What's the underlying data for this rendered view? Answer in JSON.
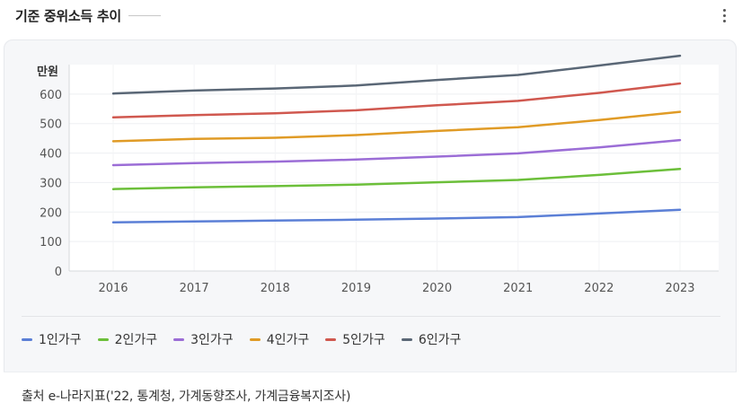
{
  "header": {
    "title": "기준 중위소득 추이"
  },
  "source_text": "출처 e-나라지표('22, 통계청, 가계동향조사, 가계금융복지조사)",
  "chart_data": {
    "type": "line",
    "title": "",
    "xlabel": "",
    "ylabel": "만원",
    "x": [
      "2016",
      "2017",
      "2018",
      "2019",
      "2020",
      "2021",
      "2022",
      "2023"
    ],
    "yticks": [
      0,
      100,
      200,
      300,
      400,
      500,
      600
    ],
    "ylim": [
      0,
      700
    ],
    "grid": true,
    "legend_position": "bottom",
    "series": [
      {
        "name": "1인가구",
        "color": "#5b7fd6",
        "values": [
          165,
          168,
          171,
          174,
          178,
          183,
          195,
          208
        ]
      },
      {
        "name": "2인가구",
        "color": "#6cbf3a",
        "values": [
          278,
          284,
          288,
          293,
          301,
          309,
          326,
          346
        ]
      },
      {
        "name": "3인가구",
        "color": "#9b6dd6",
        "values": [
          359,
          366,
          371,
          378,
          388,
          399,
          419,
          444
        ]
      },
      {
        "name": "4인가구",
        "color": "#e09b26",
        "values": [
          440,
          448,
          452,
          461,
          475,
          488,
          512,
          540
        ]
      },
      {
        "name": "5인가구",
        "color": "#d0584f",
        "values": [
          521,
          529,
          535,
          545,
          562,
          577,
          604,
          636
        ]
      },
      {
        "name": "6인가구",
        "color": "#5a6776",
        "values": [
          602,
          612,
          619,
          629,
          648,
          665,
          697,
          730
        ]
      }
    ]
  }
}
